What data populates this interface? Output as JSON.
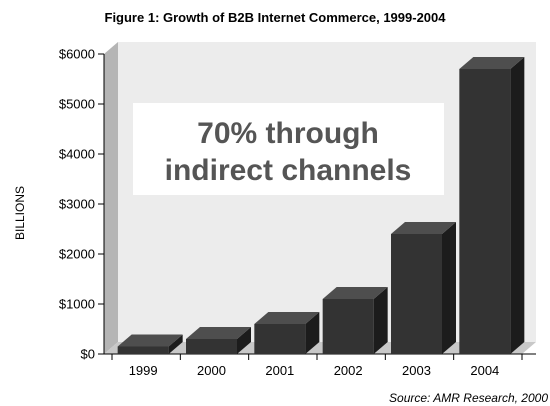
{
  "chart_data": {
    "type": "bar",
    "title": "Figure 1: Growth of B2B Internet Commerce, 1999-2004",
    "ylabel": "BILLIONS",
    "xlabel": "",
    "categories": [
      "1999",
      "2000",
      "2001",
      "2002",
      "2003",
      "2004"
    ],
    "values": [
      150,
      300,
      600,
      1100,
      2400,
      5700
    ],
    "ylim": [
      0,
      6000
    ],
    "yticks": [
      "$0",
      "$1000",
      "$2000",
      "$3000",
      "$4000",
      "$5000",
      "$6000"
    ],
    "annotation": [
      "70% through",
      "indirect channels"
    ],
    "source": "Source: AMR Research, 2000",
    "grid": false,
    "legend": "none",
    "colors": {
      "bar_front": "#333333",
      "bar_side": "#1c1c1c",
      "bar_top": "#4e4e4e",
      "back_wall": "#ececec",
      "side_wall": "#b5b5b5",
      "floor": "#c8c8c8",
      "annotation_box": "#ffffff",
      "annotation_text": "#555555"
    }
  }
}
